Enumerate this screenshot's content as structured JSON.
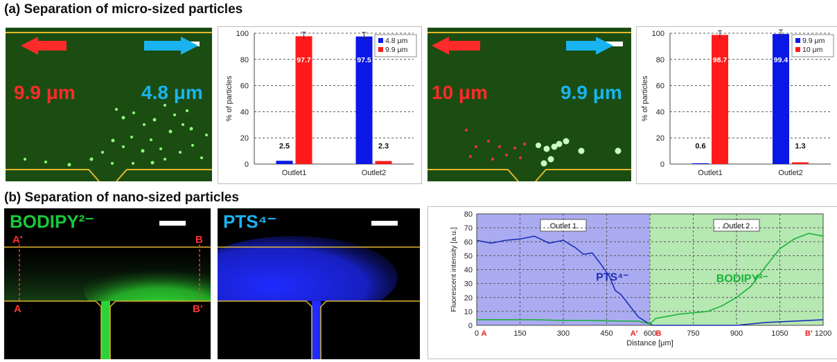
{
  "headings": {
    "a": "(a) Separation of micro-sized particles",
    "b": "(b) Separation of nano-sized particles"
  },
  "micro_images": [
    {
      "left_label": "9.9 μm",
      "right_label": "4.8 μm",
      "left_color": "#ff2a2a",
      "right_color": "#19b4f0"
    },
    {
      "left_label": "10 μm",
      "right_label": "9.9 μm",
      "left_color": "#ff2a2a",
      "right_color": "#19b4f0"
    }
  ],
  "nano_images": [
    {
      "title": "BODIPY²⁻",
      "title_color": "#16c93a",
      "markers": {
        "top_left": "A′",
        "top_right": "B",
        "bottom_left": "A",
        "bottom_right": "B′"
      }
    },
    {
      "title": "PTS⁴⁻",
      "title_color": "#19b4f0"
    }
  ],
  "colors": {
    "blue": "#0a17e6",
    "red": "#ff1a1a",
    "green": "#19b13a",
    "navy": "#1a2fb5"
  },
  "chart_data": [
    {
      "type": "bar",
      "categories": [
        "Outlet1",
        "Outlet2"
      ],
      "series": [
        {
          "name": "4.8 μm",
          "values": [
            2.5,
            97.5
          ],
          "color": "#0a17e6"
        },
        {
          "name": "9.9 μm",
          "values": [
            97.7,
            2.3
          ],
          "color": "#ff1a1a"
        }
      ],
      "ylabel": "% of particles",
      "ylim": [
        0,
        100
      ],
      "yticks": [
        0,
        20,
        40,
        60,
        80,
        100
      ],
      "legend": "top-right",
      "grid": true
    },
    {
      "type": "bar",
      "categories": [
        "Outlet1",
        "Outlet2"
      ],
      "series": [
        {
          "name": "9.9 μm",
          "values": [
            0.6,
            99.4
          ],
          "color": "#0a17e6"
        },
        {
          "name": "10 μm",
          "values": [
            98.7,
            1.3
          ],
          "color": "#ff1a1a"
        }
      ],
      "ylabel": "% of particles",
      "ylim": [
        0,
        100
      ],
      "yticks": [
        0,
        20,
        40,
        60,
        80,
        100
      ],
      "legend": "top-right",
      "grid": true
    },
    {
      "type": "line",
      "xlabel": "Distance [μm]",
      "ylabel": "Fluorescent intensity [a.u.]",
      "xlim": [
        0,
        1200
      ],
      "ylim": [
        0,
        80
      ],
      "xticks": [
        0,
        150,
        300,
        450,
        600,
        750,
        900,
        1050,
        1200
      ],
      "yticks": [
        0,
        10,
        20,
        30,
        40,
        50,
        60,
        70,
        80
      ],
      "regions": [
        {
          "label": "Outlet 1",
          "x": [
            0,
            600
          ],
          "color": "#ababf2"
        },
        {
          "label": "Outlet 2",
          "x": [
            600,
            1200
          ],
          "color": "#b6e8b2"
        }
      ],
      "point_labels": [
        {
          "text": "A",
          "x": 25
        },
        {
          "text": "A′",
          "x": 545
        },
        {
          "text": "B",
          "x": 630
        },
        {
          "text": "B′",
          "x": 1150
        }
      ],
      "series": [
        {
          "name": "PTS⁴⁻",
          "color": "#1a2fb5",
          "x": [
            0,
            50,
            100,
            150,
            200,
            250,
            300,
            340,
            370,
            400,
            430,
            460,
            480,
            500,
            530,
            560,
            590,
            610,
            700,
            900,
            1000,
            1100,
            1200
          ],
          "y": [
            61,
            59,
            61,
            62,
            64,
            59,
            61,
            56,
            51,
            52,
            44,
            35,
            25,
            22,
            14,
            6,
            2,
            0,
            0,
            0,
            2,
            3,
            4
          ]
        },
        {
          "name": "BODIPY²⁻",
          "color": "#19b13a",
          "x": [
            0,
            100,
            200,
            300,
            400,
            500,
            560,
            600,
            620,
            650,
            700,
            750,
            800,
            850,
            900,
            950,
            1000,
            1050,
            1100,
            1150,
            1200
          ],
          "y": [
            4,
            4,
            4,
            3.5,
            3.5,
            3,
            3,
            1,
            5,
            6,
            8,
            9,
            10,
            14,
            20,
            28,
            42,
            55,
            62,
            66,
            64
          ]
        }
      ],
      "series_labels": [
        {
          "text": "PTS⁴⁻",
          "x": 470,
          "y": 32
        },
        {
          "text": "BODIPY²⁻",
          "x": 920,
          "y": 31
        }
      ]
    }
  ]
}
